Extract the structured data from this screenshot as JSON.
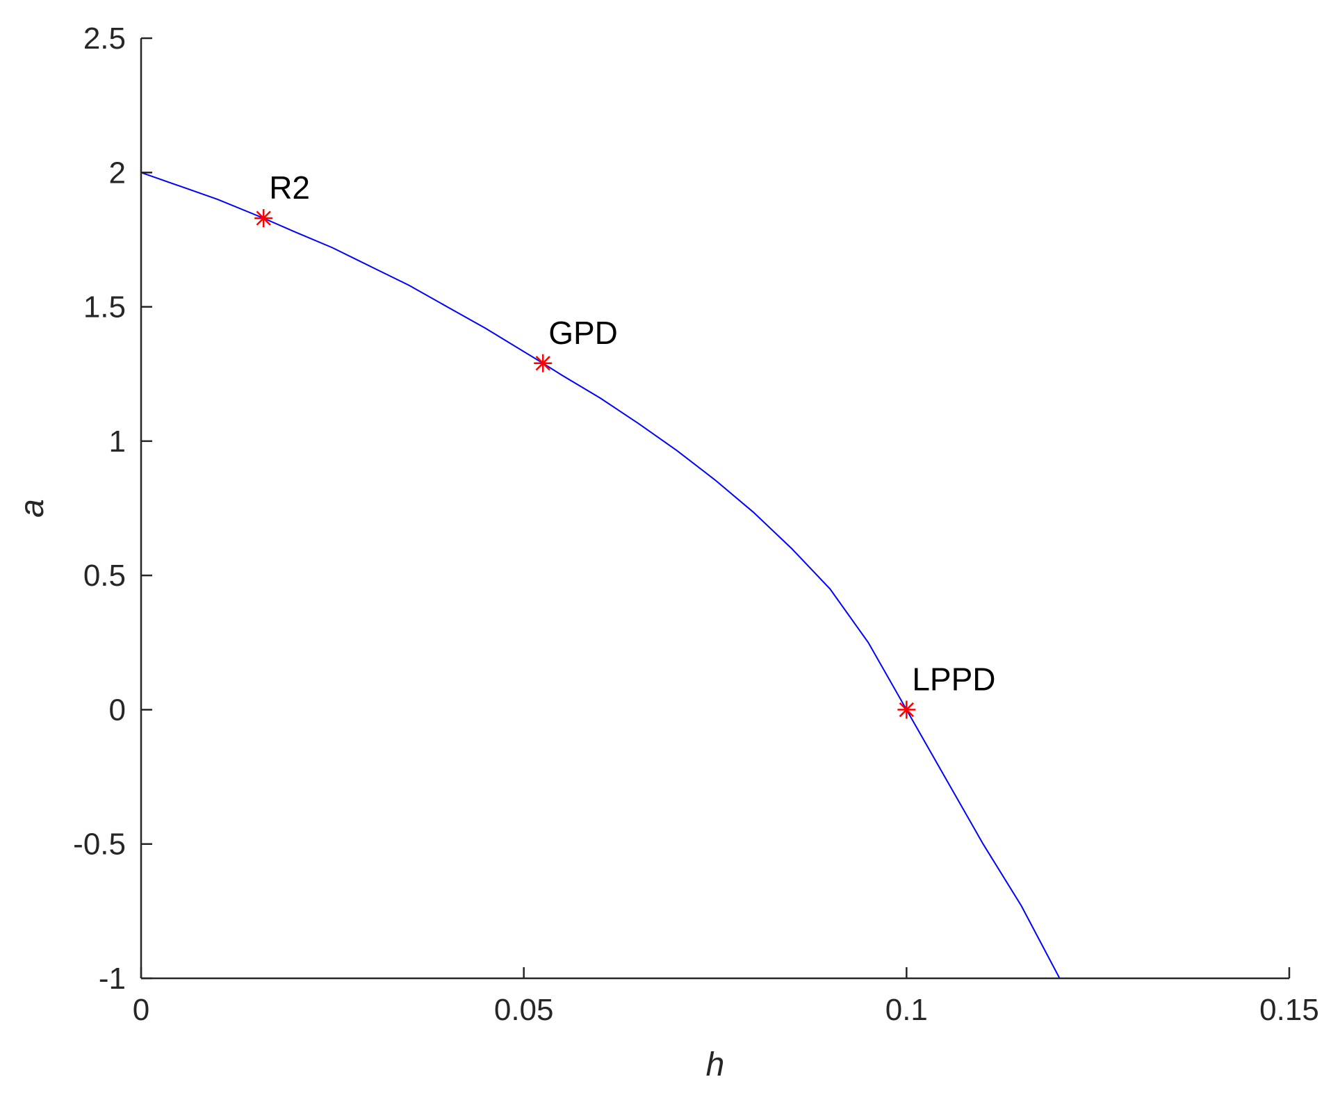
{
  "chart_data": {
    "type": "line",
    "xlabel": "h",
    "ylabel": "a",
    "xlim": [
      0,
      0.15
    ],
    "ylim": [
      -1,
      2.5
    ],
    "x_ticks": [
      0,
      0.05,
      0.1,
      0.15
    ],
    "x_tick_labels": [
      "0",
      "0.05",
      "0.1",
      "0.15"
    ],
    "y_ticks": [
      -1,
      -0.5,
      0,
      0.5,
      1,
      1.5,
      2,
      2.5
    ],
    "y_tick_labels": [
      "-1",
      "-0.5",
      "0",
      "0.5",
      "1",
      "1.5",
      "2",
      "2.5"
    ],
    "grid": false,
    "series": [
      {
        "color": "#0000ff",
        "x": [
          0,
          0.005,
          0.01,
          0.016,
          0.02,
          0.025,
          0.03,
          0.035,
          0.04,
          0.045,
          0.0525,
          0.055,
          0.06,
          0.065,
          0.07,
          0.075,
          0.08,
          0.085,
          0.09,
          0.095,
          0.1,
          0.105,
          0.11,
          0.115,
          0.12
        ],
        "y": [
          2.0,
          1.95,
          1.9,
          1.83,
          1.78,
          1.72,
          1.65,
          1.58,
          1.5,
          1.42,
          1.29,
          1.245,
          1.16,
          1.065,
          0.965,
          0.855,
          0.735,
          0.6,
          0.45,
          0.25,
          0.0,
          -0.25,
          -0.5,
          -0.73,
          -1.0
        ]
      }
    ],
    "points": [
      {
        "label": "R2",
        "x": 0.016,
        "y": 1.83,
        "color": "#ff0000"
      },
      {
        "label": "GPD",
        "x": 0.0525,
        "y": 1.29,
        "color": "#ff0000"
      },
      {
        "label": "LPPD",
        "x": 0.1,
        "y": 0.0,
        "color": "#ff0000"
      }
    ]
  }
}
